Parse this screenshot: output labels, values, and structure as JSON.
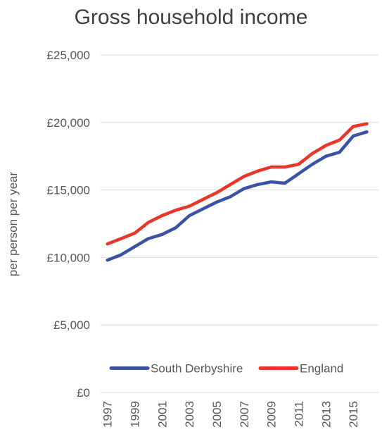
{
  "chart_data": {
    "type": "line",
    "title": "Gross household income",
    "ylabel": "per person per year",
    "xlabel": "",
    "ylim": [
      0,
      25000
    ],
    "yticks": [
      0,
      5000,
      10000,
      15000,
      20000,
      25000
    ],
    "ytick_labels": [
      "£0",
      "£5,000",
      "£10,000",
      "£15,000",
      "£20,000",
      "£25,000"
    ],
    "x": [
      1997,
      1998,
      1999,
      2000,
      2001,
      2002,
      2003,
      2004,
      2005,
      2006,
      2007,
      2008,
      2009,
      2010,
      2011,
      2012,
      2013,
      2014,
      2015,
      2016
    ],
    "xtick_labels": [
      "1997",
      "1999",
      "2001",
      "2003",
      "2005",
      "2007",
      "2009",
      "2011",
      "2013",
      "2015"
    ],
    "grid": "horizontal",
    "legend_position": "bottom",
    "series": [
      {
        "name": "South Derbyshire",
        "color": "#3a53a4",
        "values": [
          9800,
          10200,
          10800,
          11400,
          11700,
          12200,
          13100,
          13600,
          14100,
          14500,
          15100,
          15400,
          15600,
          15500,
          16200,
          16900,
          17500,
          17800,
          19000,
          19300
        ]
      },
      {
        "name": "England",
        "color": "#e8362a",
        "values": [
          11000,
          11400,
          11800,
          12600,
          13100,
          13500,
          13800,
          14300,
          14800,
          15400,
          16000,
          16400,
          16700,
          16700,
          16900,
          17700,
          18300,
          18700,
          19700,
          19900
        ]
      }
    ]
  }
}
